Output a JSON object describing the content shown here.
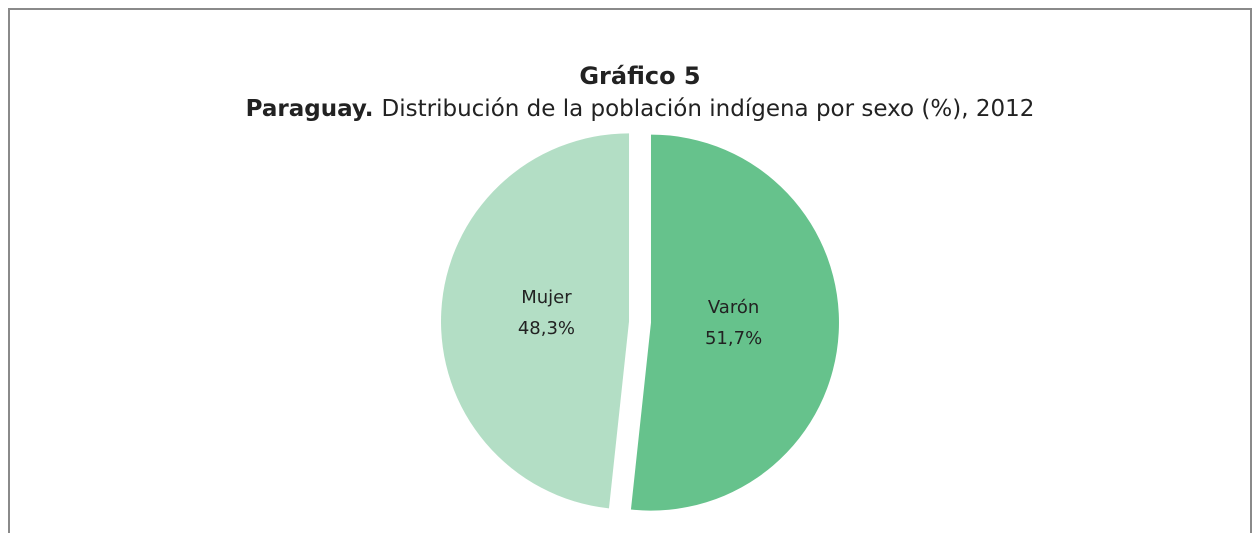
{
  "chart_data": {
    "type": "pie",
    "title": "Gráfico 5",
    "subtitle_bold": "Paraguay.",
    "subtitle": "Distribución de la población indígena por sexo (%), 2012",
    "categories": [
      "Varón",
      "Mujer"
    ],
    "values": [
      51.7,
      48.3
    ],
    "value_labels": [
      "51,7%",
      "48,3%"
    ],
    "colors": [
      "#66c28c",
      "#b3dec5"
    ]
  }
}
